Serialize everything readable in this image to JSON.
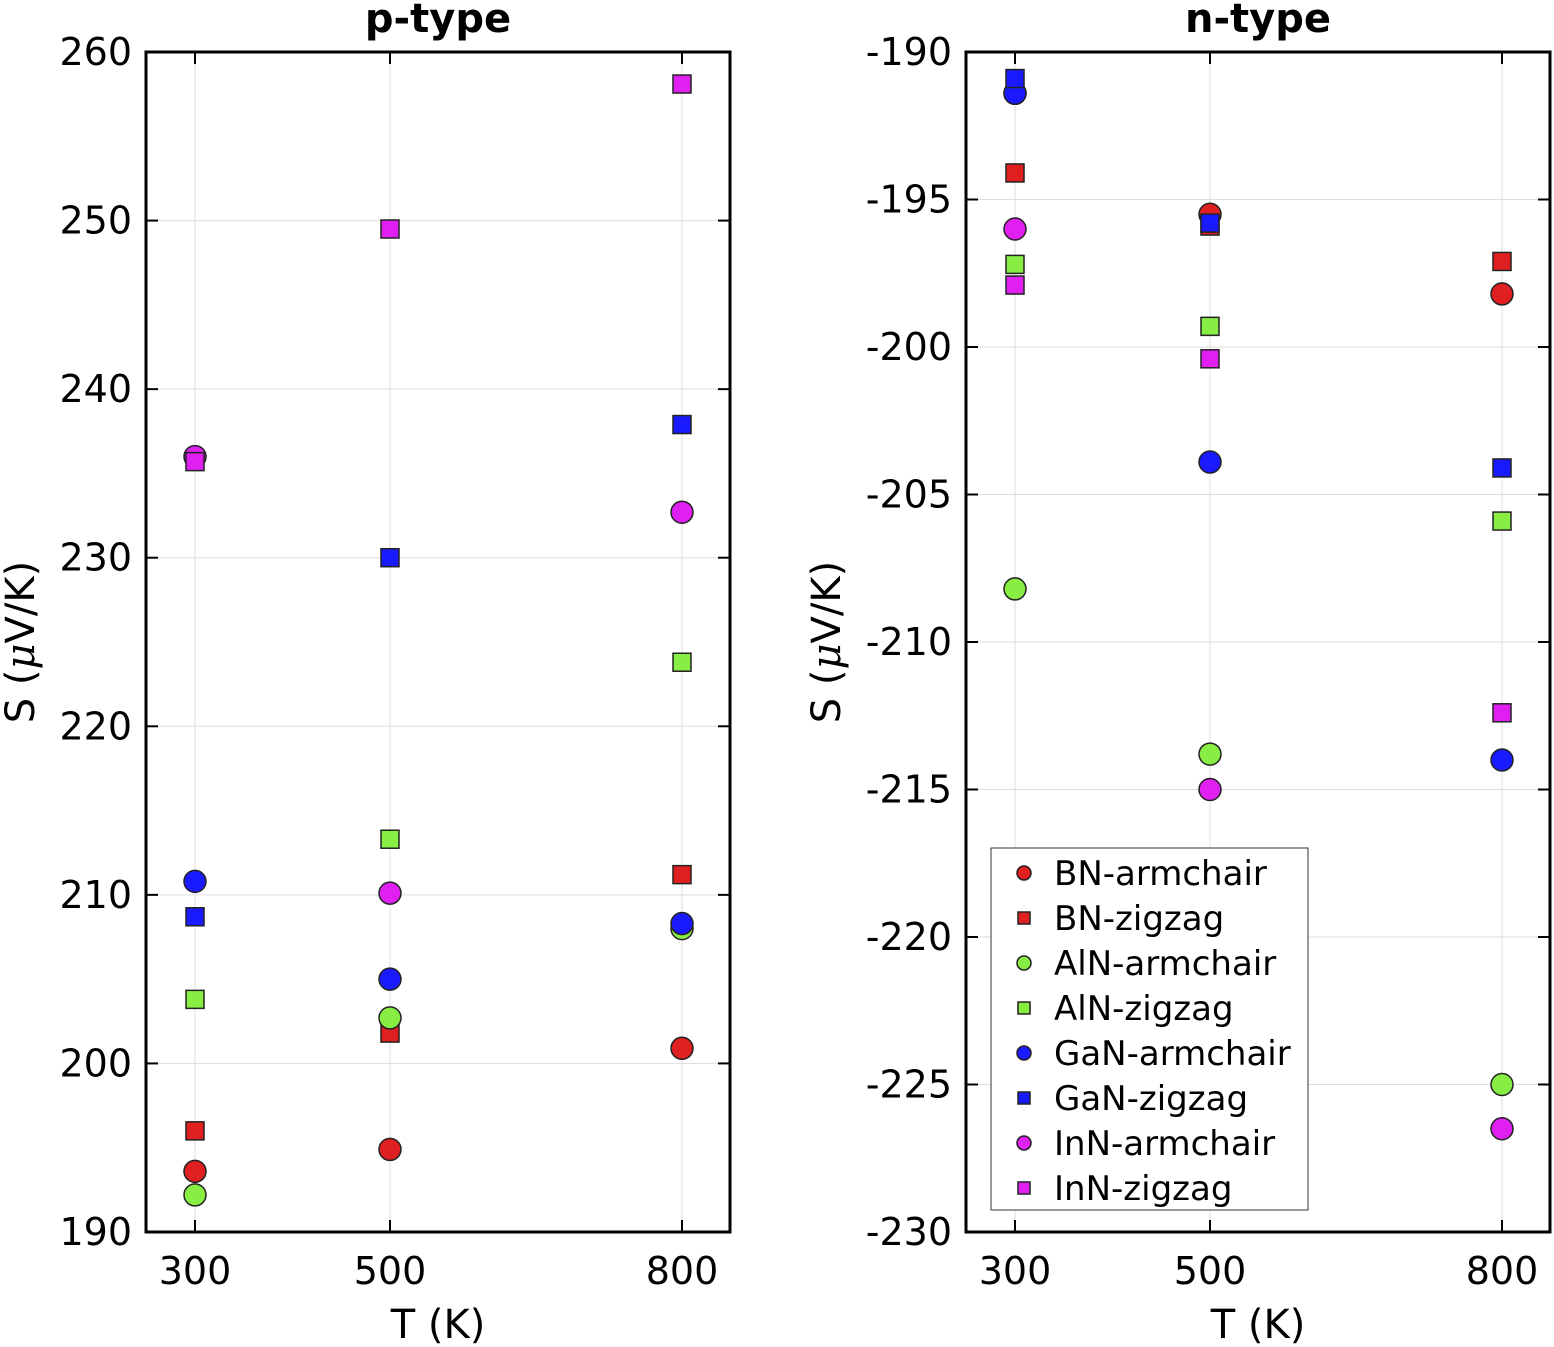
{
  "chart_data": [
    {
      "type": "scatter",
      "title": "p-type",
      "xlabel": "T (K)",
      "ylabel_text": "S (",
      "ylabel_mu": "μ",
      "ylabel_unit": "V/K)",
      "x": [
        300,
        500,
        800
      ],
      "xticks": [
        "300",
        "500",
        "800"
      ],
      "yticks": [
        "190",
        "200",
        "210",
        "220",
        "230",
        "240",
        "250",
        "260"
      ],
      "ylim": [
        190,
        260
      ],
      "grid": true,
      "series": [
        {
          "name": "BN-armchair",
          "marker": "circle",
          "color": "#e02020",
          "values": [
            193.6,
            194.9,
            200.9
          ]
        },
        {
          "name": "BN-zigzag",
          "marker": "square",
          "color": "#e02020",
          "values": [
            196.0,
            201.8,
            211.2
          ]
        },
        {
          "name": "AlN-armchair",
          "marker": "circle",
          "color": "#88ee44",
          "values": [
            192.2,
            202.7,
            208.0
          ]
        },
        {
          "name": "AlN-zigzag",
          "marker": "square",
          "color": "#88ee44",
          "values": [
            203.8,
            213.3,
            223.8
          ]
        },
        {
          "name": "GaN-armchair",
          "marker": "circle",
          "color": "#1a1aff",
          "values": [
            210.8,
            205.0,
            208.3
          ]
        },
        {
          "name": "GaN-zigzag",
          "marker": "square",
          "color": "#1a1aff",
          "values": [
            208.7,
            230.0,
            237.9
          ]
        },
        {
          "name": "InN-armchair",
          "marker": "circle",
          "color": "#e020f0",
          "values": [
            236.0,
            210.1,
            232.7
          ]
        },
        {
          "name": "InN-zigzag",
          "marker": "square",
          "color": "#e020f0",
          "values": [
            235.7,
            249.5,
            258.1
          ]
        }
      ]
    },
    {
      "type": "scatter",
      "title": "n-type",
      "xlabel": "T (K)",
      "ylabel_text": "S (",
      "ylabel_mu": "μ",
      "ylabel_unit": "V/K)",
      "x": [
        300,
        500,
        800
      ],
      "xticks": [
        "300",
        "500",
        "800"
      ],
      "yticks": [
        "-230",
        "-225",
        "-220",
        "-215",
        "-210",
        "-205",
        "-200",
        "-195",
        "-190"
      ],
      "ylim": [
        -230,
        -190
      ],
      "grid": true,
      "legend_position": "lower-left",
      "series": [
        {
          "name": "BN-armchair",
          "marker": "circle",
          "color": "#e02020",
          "values": [
            -191.4,
            -195.5,
            -198.2
          ]
        },
        {
          "name": "BN-zigzag",
          "marker": "square",
          "color": "#e02020",
          "values": [
            -194.1,
            -195.9,
            -197.1
          ]
        },
        {
          "name": "AlN-armchair",
          "marker": "circle",
          "color": "#88ee44",
          "values": [
            -208.2,
            -213.8,
            -225.0
          ]
        },
        {
          "name": "AlN-zigzag",
          "marker": "square",
          "color": "#88ee44",
          "values": [
            -197.2,
            -199.3,
            -205.9
          ]
        },
        {
          "name": "GaN-armchair",
          "marker": "circle",
          "color": "#1a1aff",
          "values": [
            -191.4,
            -203.9,
            -214.0
          ]
        },
        {
          "name": "GaN-zigzag",
          "marker": "square",
          "color": "#1a1aff",
          "values": [
            -190.9,
            -195.8,
            -204.1
          ]
        },
        {
          "name": "InN-armchair",
          "marker": "circle",
          "color": "#e020f0",
          "values": [
            -196.0,
            -215.0,
            -226.5
          ]
        },
        {
          "name": "InN-zigzag",
          "marker": "square",
          "color": "#e020f0",
          "values": [
            -197.9,
            -200.4,
            -212.4
          ]
        }
      ]
    }
  ]
}
